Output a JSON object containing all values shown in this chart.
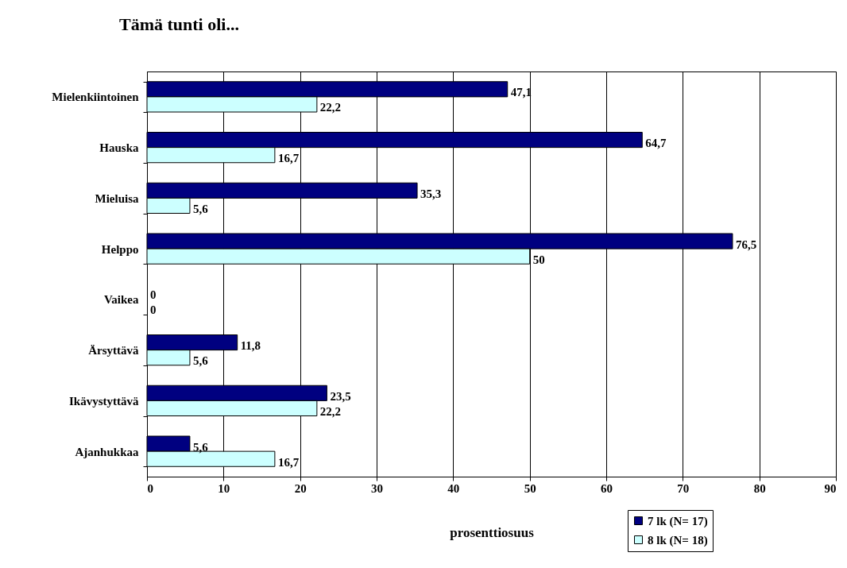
{
  "chart_data": {
    "type": "bar",
    "orientation": "horizontal",
    "title": "Tämä tunti oli...",
    "xlabel": "prosenttiosuus",
    "categories": [
      "Mielenkiintoinen",
      "Hauska",
      "Mieluisa",
      "Helppo",
      "Vaikea",
      "Ärsyttävä",
      "Ikävystyttävä",
      "Ajanhukkaa"
    ],
    "series": [
      {
        "name": "7 lk (N= 17)",
        "color": "#000080",
        "values": [
          47.1,
          64.7,
          35.3,
          76.5,
          0,
          11.8,
          23.5,
          5.6
        ],
        "value_labels": [
          "47,1",
          "64,7",
          "35,3",
          "76,5",
          "0",
          "11,8",
          "23,5",
          "5,6"
        ]
      },
      {
        "name": "8 lk (N= 18)",
        "color": "#ccffff",
        "values": [
          22.2,
          16.7,
          5.6,
          50,
          0,
          5.6,
          22.2,
          16.7
        ],
        "value_labels": [
          "22,2",
          "16,7",
          "5,6",
          "50",
          "0",
          "5,6",
          "22,2",
          "16,7"
        ]
      }
    ],
    "xlim": [
      0,
      90
    ],
    "xticks": [
      0,
      10,
      20,
      30,
      40,
      50,
      60,
      70,
      80,
      90
    ],
    "grid": "x",
    "legend": "bottom right"
  }
}
